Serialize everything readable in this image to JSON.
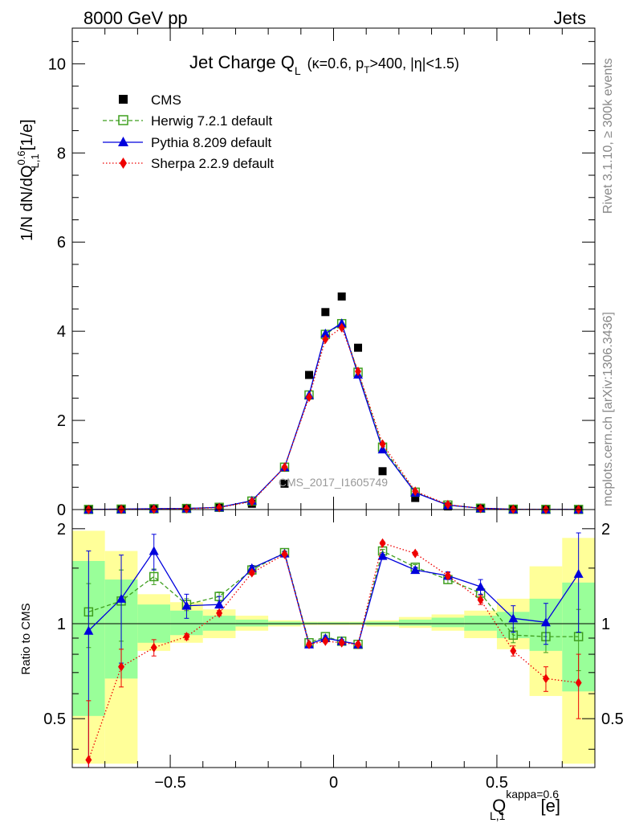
{
  "header": {
    "left": "8000 GeV pp",
    "right": "Jets"
  },
  "side_labels": {
    "rivet": "Rivet 3.1.10, ≥ 300k events",
    "mcplots": "mcplots.cern.ch [arXiv:1306.3436]"
  },
  "watermark": "CMS_2017_I1605749",
  "colors": {
    "cms": "#000000",
    "herwig": "#3f9f1f",
    "pythia": "#0000dd",
    "sherpa": "#ee0000",
    "band_inner": "#99ff99",
    "band_outer": "#ffff99"
  },
  "chart_data": [
    {
      "type": "scatter",
      "title": "Jet Charge Q",
      "title_sub": "L",
      "title_kin": "(κ=0.6, p",
      "title_kin_sub": "T",
      "title_kin_rest": ">400, |η|<1.5)",
      "ylabel": "1/N dN/dQ",
      "ylabel_sup": "0.6",
      "ylabel_sub": "L,1",
      "ylabel_unit": "[1/e]",
      "xlim": [
        -0.8,
        0.8
      ],
      "ylim": [
        0,
        10.8
      ],
      "yticks": [
        0,
        2,
        4,
        6,
        8,
        10
      ],
      "grid": false,
      "legend_position": "top-left",
      "x": [
        -0.75,
        -0.65,
        -0.55,
        -0.45,
        -0.35,
        -0.25,
        -0.15,
        -0.075,
        -0.025,
        0.025,
        0.075,
        0.15,
        0.25,
        0.35,
        0.45,
        0.55,
        0.65,
        0.75
      ],
      "series": [
        {
          "name": "CMS",
          "key": "cms",
          "marker": "square-filled",
          "values": [
            0.003,
            0.008,
            0.012,
            0.02,
            0.04,
            0.13,
            0.58,
            3.02,
            4.43,
            4.78,
            3.63,
            0.86,
            0.26,
            0.07,
            0.02,
            0.008,
            0.004,
            0.003
          ]
        },
        {
          "name": "Herwig 7.2.1 default",
          "key": "herwig",
          "marker": "square-open",
          "values": [
            0.003,
            0.01,
            0.017,
            0.024,
            0.05,
            0.19,
            0.95,
            2.57,
            3.93,
            4.17,
            3.08,
            1.4,
            0.39,
            0.1,
            0.03,
            0.007,
            0.004,
            0.003
          ]
        },
        {
          "name": "Pythia 8.209 default",
          "key": "pythia",
          "marker": "triangle",
          "values": [
            0.003,
            0.01,
            0.02,
            0.025,
            0.05,
            0.2,
            0.95,
            2.57,
            3.95,
            4.18,
            3.03,
            1.35,
            0.38,
            0.1,
            0.03,
            0.007,
            0.004,
            0.003
          ]
        },
        {
          "name": "Sherpa 2.2.9 default",
          "key": "sherpa",
          "marker": "diamond",
          "values": [
            0.001,
            0.006,
            0.01,
            0.018,
            0.045,
            0.18,
            0.95,
            2.52,
            3.82,
            4.08,
            3.1,
            1.47,
            0.41,
            0.11,
            0.025,
            0.006,
            0.003,
            0.002
          ]
        }
      ]
    },
    {
      "type": "line",
      "ylabel": "Ratio to CMS",
      "xlabel": "Q",
      "xlabel_sup": "kappa=0.6",
      "xlabel_sub": "L,1",
      "xlabel_unit": "[e]",
      "xlim": [
        -0.8,
        0.8
      ],
      "ylim": [
        0.35,
        2.3
      ],
      "yscale": "log",
      "yticks": [
        0.5,
        1,
        2
      ],
      "xticks": [
        -0.5,
        0,
        0.5
      ],
      "xtick_labels": [
        "−0.5",
        "0",
        "0.5"
      ],
      "grid": false,
      "x": [
        -0.75,
        -0.65,
        -0.55,
        -0.45,
        -0.35,
        -0.25,
        -0.15,
        -0.075,
        -0.025,
        0.025,
        0.075,
        0.15,
        0.25,
        0.35,
        0.45,
        0.55,
        0.65,
        0.75
      ],
      "bands": {
        "edges": [
          -0.8,
          -0.7,
          -0.6,
          -0.5,
          -0.4,
          -0.3,
          -0.2,
          -0.1,
          -0.05,
          0,
          0.05,
          0.1,
          0.2,
          0.3,
          0.4,
          0.5,
          0.6,
          0.7,
          0.8
        ],
        "inner_low": [
          0.51,
          0.67,
          0.87,
          0.92,
          0.95,
          0.98,
          0.99,
          0.995,
          0.995,
          0.995,
          0.995,
          0.99,
          0.985,
          0.975,
          0.95,
          0.9,
          0.82,
          0.61
        ],
        "inner_high": [
          1.58,
          1.38,
          1.15,
          1.1,
          1.06,
          1.03,
          1.015,
          1.01,
          1.01,
          1.01,
          1.01,
          1.015,
          1.03,
          1.045,
          1.06,
          1.09,
          1.2,
          1.35
        ],
        "outer_low": [
          0.36,
          0.36,
          0.82,
          0.87,
          0.9,
          0.95,
          0.98,
          0.99,
          0.99,
          0.99,
          0.99,
          0.98,
          0.97,
          0.95,
          0.9,
          0.83,
          0.59,
          0.36
        ],
        "outer_high": [
          1.97,
          1.7,
          1.24,
          1.17,
          1.11,
          1.06,
          1.025,
          1.015,
          1.015,
          1.015,
          1.015,
          1.025,
          1.05,
          1.07,
          1.1,
          1.2,
          1.52,
          1.87
        ]
      },
      "series": [
        {
          "name": "Herwig 7.2.1 default",
          "key": "herwig",
          "marker": "square-open",
          "values": [
            1.09,
            1.18,
            1.41,
            1.15,
            1.22,
            1.48,
            1.68,
            0.87,
            0.91,
            0.88,
            0.86,
            1.7,
            1.51,
            1.38,
            1.25,
            0.92,
            0.91,
            0.91
          ],
          "err": [
            0.25,
            0.3,
            0.08,
            0.05,
            0.04,
            0.03,
            0.02,
            0.01,
            0.01,
            0.01,
            0.01,
            0.02,
            0.03,
            0.04,
            0.06,
            0.05,
            0.1,
            0.2
          ]
        },
        {
          "name": "Pythia 8.209 default",
          "key": "pythia",
          "marker": "triangle",
          "values": [
            0.95,
            1.2,
            1.7,
            1.14,
            1.15,
            1.5,
            1.67,
            0.86,
            0.9,
            0.88,
            0.86,
            1.64,
            1.48,
            1.42,
            1.31,
            1.04,
            1.01,
            1.44
          ],
          "err": [
            0.75,
            0.45,
            0.22,
            0.1,
            0.07,
            0.03,
            0.02,
            0.01,
            0.01,
            0.01,
            0.01,
            0.02,
            0.03,
            0.04,
            0.07,
            0.1,
            0.15,
            0.5
          ]
        },
        {
          "name": "Sherpa 2.2.9 default",
          "key": "sherpa",
          "marker": "diamond",
          "values": [
            0.37,
            0.73,
            0.84,
            0.91,
            1.08,
            1.45,
            1.66,
            0.86,
            0.88,
            0.87,
            0.86,
            1.8,
            1.67,
            1.42,
            1.19,
            0.82,
            0.67,
            0.65
          ],
          "err": [
            0.2,
            0.1,
            0.05,
            0.02,
            0.02,
            0.02,
            0.02,
            0.01,
            0.01,
            0.01,
            0.01,
            0.02,
            0.02,
            0.03,
            0.04,
            0.03,
            0.06,
            0.15
          ]
        }
      ]
    }
  ]
}
